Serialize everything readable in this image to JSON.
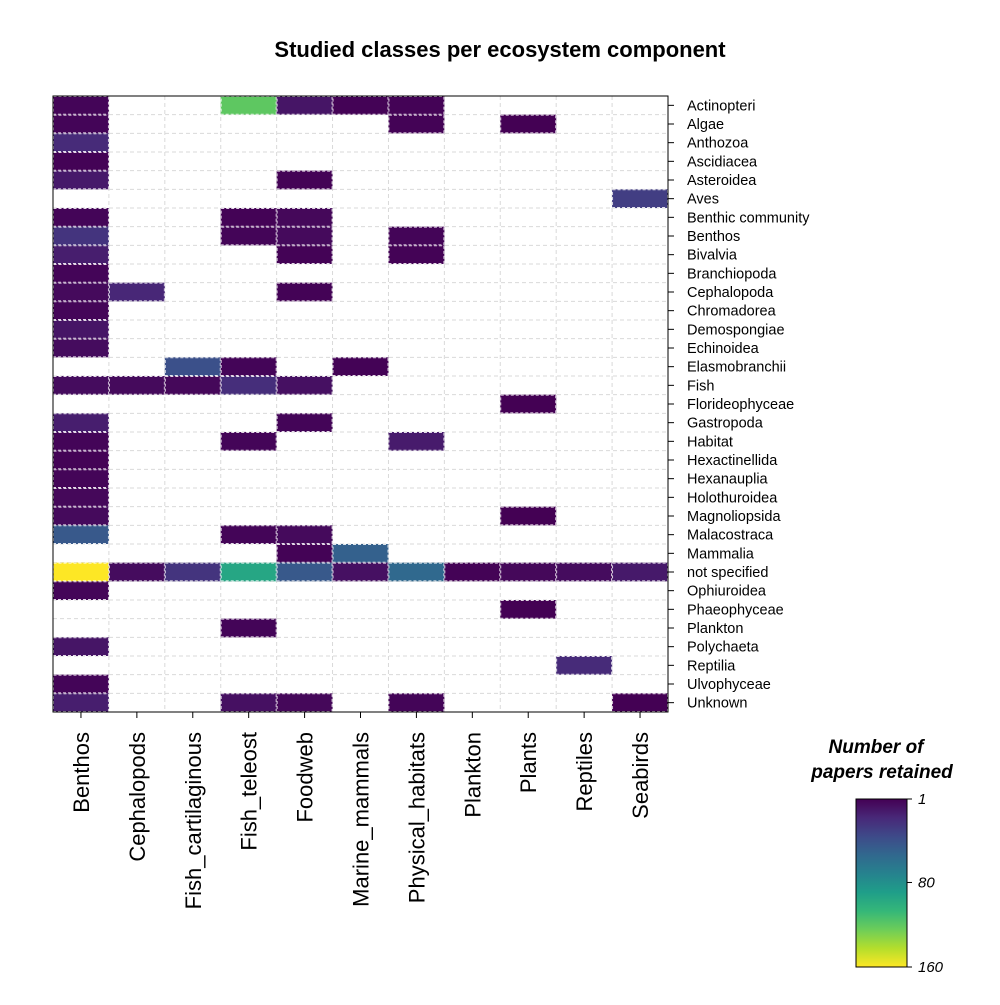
{
  "chart_data": {
    "type": "heatmap",
    "title": "Studied classes per ecosystem component",
    "columns": [
      "Benthos",
      "Cephalopods",
      "Fish_cartilaginous",
      "Fish_teleost",
      "Foodweb",
      "Marine_mammals",
      "Physical_habitats",
      "Plankton",
      "Plants",
      "Reptiles",
      "Seabirds"
    ],
    "rows": [
      "Actinopteri",
      "Algae",
      "Anthozoa",
      "Ascidiacea",
      "Asteroidea",
      "Aves",
      "Benthic community",
      "Benthos",
      "Bivalvia",
      "Branchiopoda",
      "Cephalopoda",
      "Chromadorea",
      "Demospongiae",
      "Echinoidea",
      "Elasmobranchii",
      "Fish",
      "Florideophyceae",
      "Gastropoda",
      "Habitat",
      "Hexactinellida",
      "Hexanauplia",
      "Holothuroidea",
      "Magnoliopsida",
      "Malacostraca",
      "Mammalia",
      "not specified",
      "Ophiuroidea",
      "Phaeophyceae",
      "Plankton",
      "Polychaeta",
      "Reptilia",
      "Ulvophyceae",
      "Unknown"
    ],
    "values": [
      [
        3,
        null,
        null,
        120,
        10,
        2,
        2,
        null,
        null,
        null,
        null
      ],
      [
        3,
        null,
        null,
        null,
        null,
        null,
        2,
        null,
        1,
        null,
        null
      ],
      [
        20,
        null,
        null,
        null,
        null,
        null,
        null,
        null,
        null,
        null,
        null
      ],
      [
        2,
        null,
        null,
        null,
        null,
        null,
        null,
        null,
        null,
        null,
        null
      ],
      [
        12,
        null,
        null,
        null,
        2,
        null,
        null,
        null,
        null,
        null,
        null
      ],
      [
        null,
        null,
        null,
        null,
        null,
        null,
        null,
        null,
        null,
        null,
        30
      ],
      [
        3,
        null,
        null,
        2,
        4,
        null,
        null,
        null,
        null,
        null,
        null
      ],
      [
        25,
        null,
        null,
        3,
        5,
        null,
        3,
        null,
        null,
        null,
        null
      ],
      [
        14,
        null,
        null,
        null,
        2,
        null,
        2,
        null,
        null,
        null,
        null
      ],
      [
        3,
        null,
        null,
        null,
        null,
        null,
        null,
        null,
        null,
        null,
        null
      ],
      [
        5,
        18,
        null,
        null,
        2,
        null,
        null,
        null,
        null,
        null,
        null
      ],
      [
        3,
        null,
        null,
        null,
        null,
        null,
        null,
        null,
        null,
        null,
        null
      ],
      [
        10,
        null,
        null,
        null,
        null,
        null,
        null,
        null,
        null,
        null,
        null
      ],
      [
        6,
        null,
        null,
        null,
        null,
        null,
        null,
        null,
        null,
        null,
        null
      ],
      [
        null,
        null,
        40,
        3,
        null,
        2,
        null,
        null,
        null,
        null,
        null
      ],
      [
        6,
        5,
        4,
        22,
        8,
        null,
        null,
        null,
        null,
        null,
        null
      ],
      [
        null,
        null,
        null,
        null,
        null,
        null,
        null,
        null,
        1,
        null,
        null
      ],
      [
        14,
        null,
        null,
        null,
        3,
        null,
        null,
        null,
        null,
        null,
        null
      ],
      [
        3,
        null,
        null,
        3,
        null,
        null,
        13,
        null,
        null,
        null,
        null
      ],
      [
        2,
        null,
        null,
        null,
        null,
        null,
        null,
        null,
        null,
        null,
        null
      ],
      [
        3,
        null,
        null,
        null,
        null,
        null,
        null,
        null,
        null,
        null,
        null
      ],
      [
        4,
        null,
        null,
        null,
        null,
        null,
        null,
        null,
        null,
        null,
        null
      ],
      [
        5,
        null,
        null,
        null,
        null,
        null,
        null,
        null,
        1,
        null,
        null
      ],
      [
        45,
        null,
        null,
        3,
        5,
        null,
        null,
        null,
        null,
        null,
        null
      ],
      [
        null,
        null,
        null,
        null,
        2,
        50,
        null,
        null,
        null,
        null,
        null
      ],
      [
        160,
        6,
        25,
        95,
        45,
        8,
        55,
        2,
        4,
        6,
        12
      ],
      [
        3,
        null,
        null,
        null,
        null,
        null,
        null,
        null,
        null,
        null,
        null
      ],
      [
        null,
        null,
        null,
        null,
        null,
        null,
        null,
        null,
        1,
        null,
        null
      ],
      [
        null,
        null,
        null,
        3,
        null,
        null,
        null,
        null,
        null,
        null,
        null
      ],
      [
        10,
        null,
        null,
        null,
        null,
        null,
        null,
        null,
        null,
        null,
        null
      ],
      [
        null,
        null,
        null,
        null,
        null,
        null,
        null,
        null,
        null,
        20,
        null
      ],
      [
        3,
        null,
        null,
        null,
        null,
        null,
        null,
        null,
        null,
        null,
        null
      ],
      [
        14,
        null,
        null,
        8,
        4,
        null,
        3,
        null,
        null,
        null,
        1
      ]
    ],
    "color_scale": {
      "name": "viridis",
      "reversed": true,
      "min": 1,
      "max": 160,
      "stops": [
        "#440154",
        "#482878",
        "#3E4A89",
        "#31688E",
        "#26828E",
        "#1F9E89",
        "#35B779",
        "#6DCD59",
        "#B4DE2C",
        "#FDE725"
      ]
    },
    "legend": {
      "title_line1": "Number of",
      "title_line2": "papers retained",
      "ticks": [
        1,
        80,
        160
      ],
      "placement": "bottom-right"
    },
    "grid": true
  }
}
